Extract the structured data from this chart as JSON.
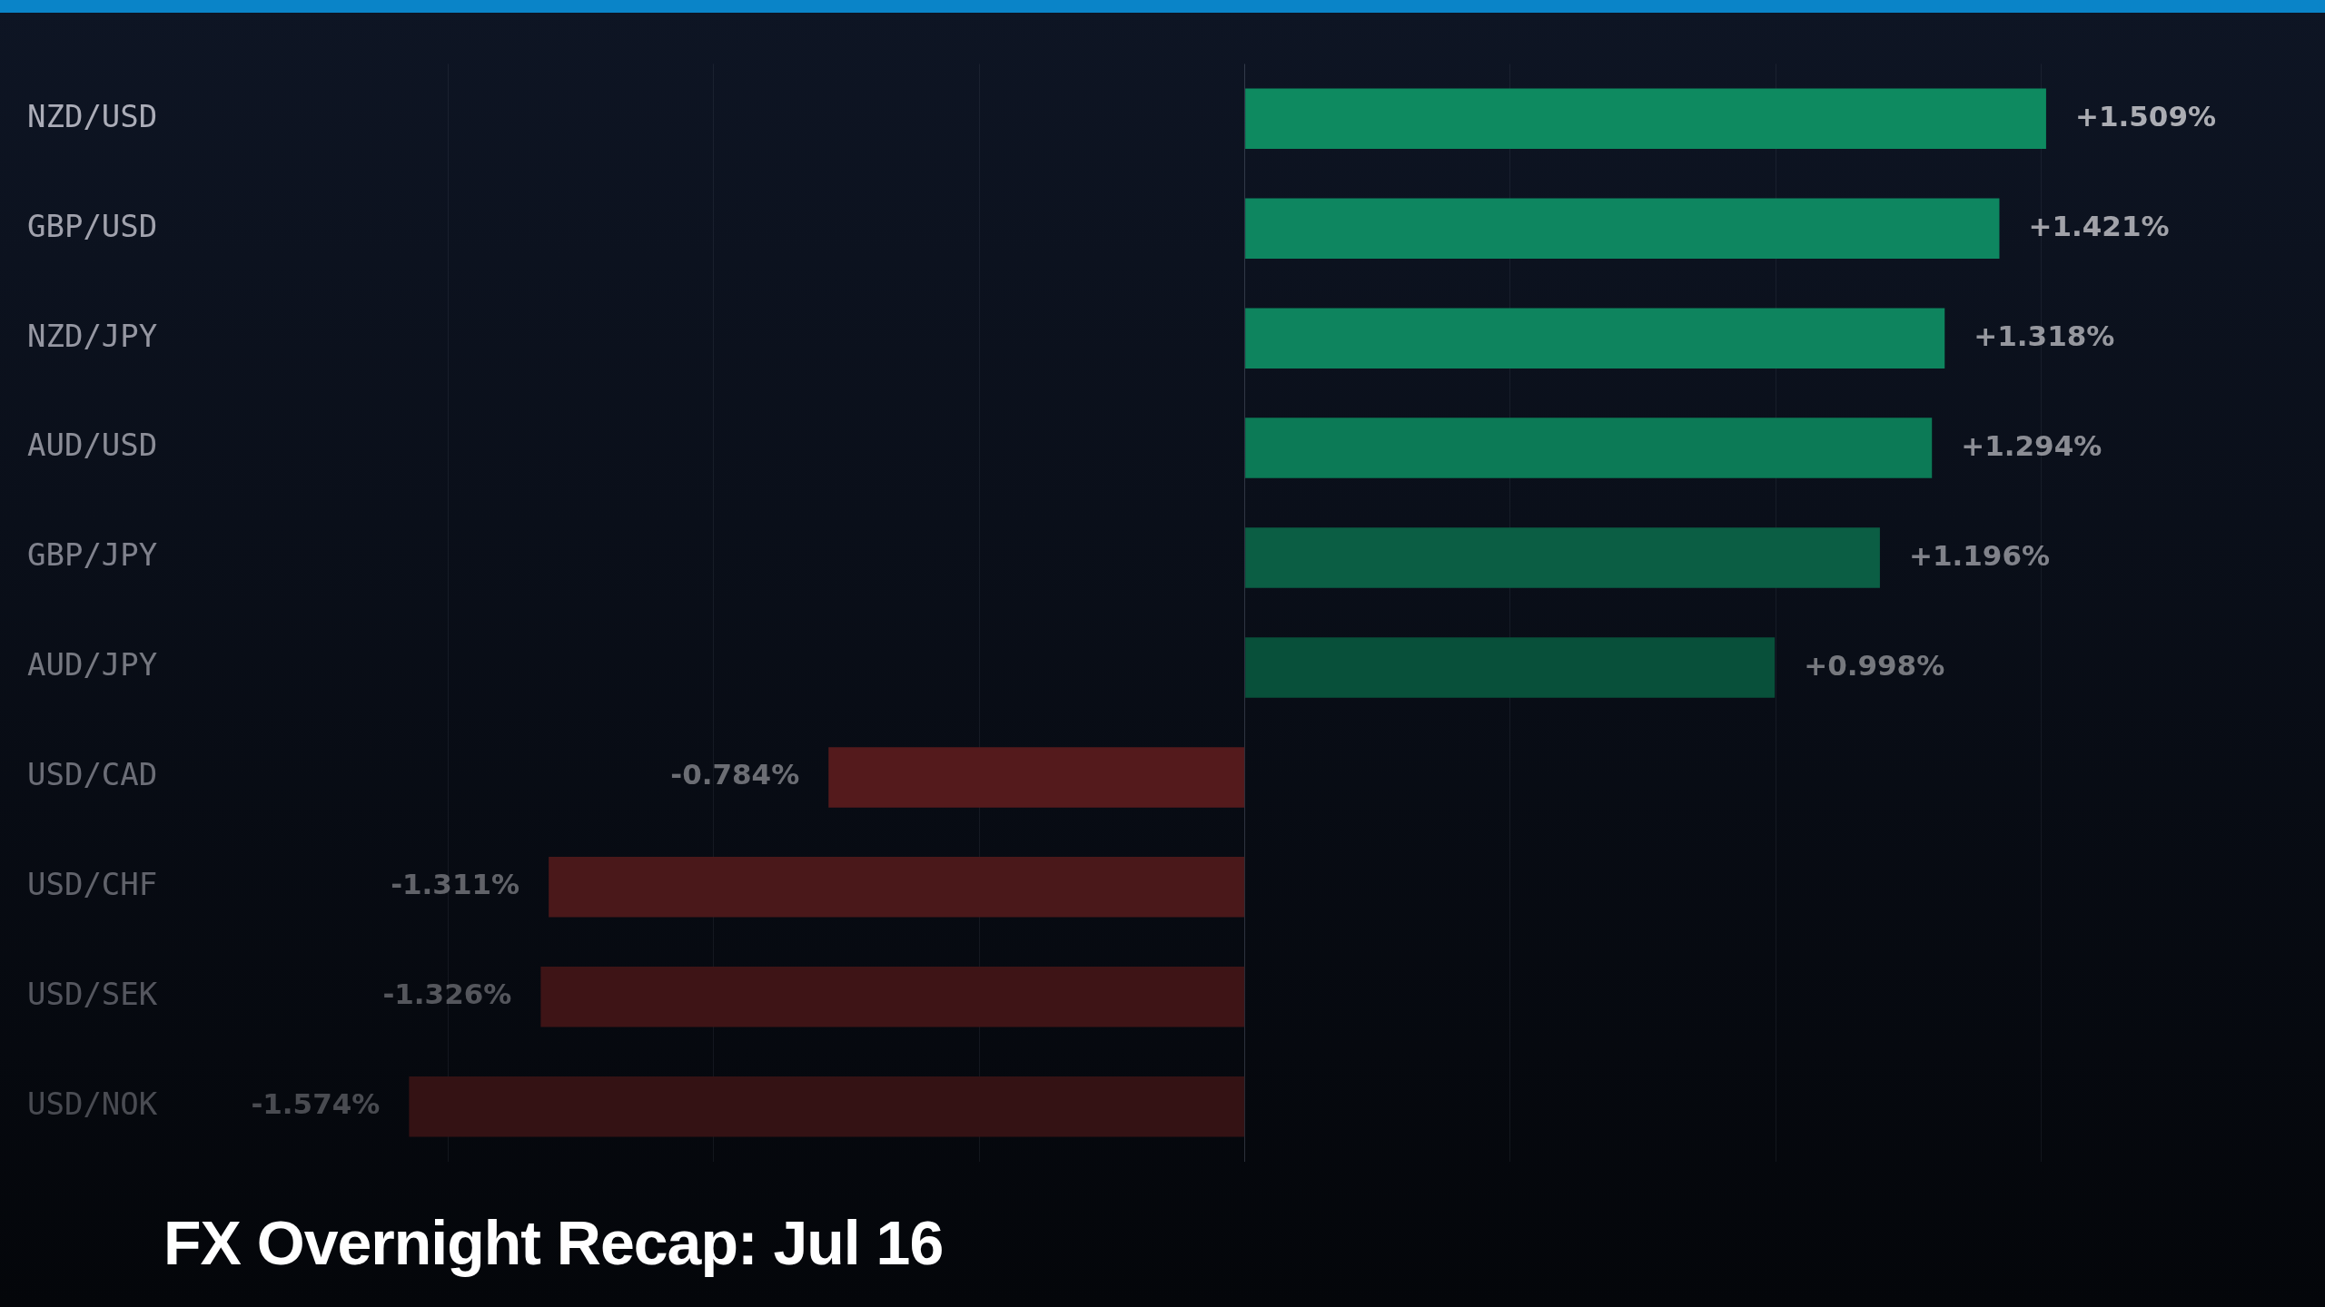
{
  "chart_data": {
    "type": "bar",
    "orientation": "horizontal",
    "title": "FX Overnight Recap: Jul 16",
    "categories": [
      "NZD/USD",
      "GBP/USD",
      "NZD/JPY",
      "AUD/USD",
      "GBP/JPY",
      "AUD/JPY",
      "USD/CAD",
      "USD/CHF",
      "USD/SEK",
      "USD/NOK"
    ],
    "values": [
      1.509,
      1.421,
      1.318,
      1.294,
      1.196,
      0.998,
      -0.784,
      -1.311,
      -1.326,
      -1.574
    ],
    "value_labels": [
      "+1.509%",
      "+1.421%",
      "+1.318%",
      "+1.294%",
      "+1.196%",
      "+0.998%",
      "-0.784%",
      "-1.311%",
      "-1.326%",
      "-1.574%"
    ],
    "colors": [
      "#0e8a60",
      "#0e8660",
      "#0e845e",
      "#0c7a56",
      "#0b5e44",
      "#08503a",
      "#541a1c",
      "#4a181a",
      "#3e1416",
      "#341214"
    ],
    "xticks": [
      {
        "value": -1.5,
        "label": null
      },
      {
        "value": -1,
        "label": null
      },
      {
        "value": -0.5,
        "label": null
      },
      {
        "value": 0,
        "label": null
      },
      {
        "value": 0.5,
        "label": null
      },
      {
        "value": 1,
        "label": null
      },
      {
        "value": 1.5,
        "label": null
      }
    ],
    "grid": "x",
    "tick_labels": "y"
  }
}
